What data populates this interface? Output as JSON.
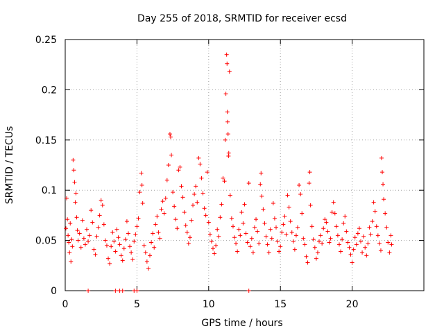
{
  "chart_data": {
    "type": "scatter",
    "title": "Day 255 of 2018, SRMTID for receiver ecsd",
    "xlabel": "GPS time / hours",
    "ylabel": "SRMTID / TECUs",
    "xlim": [
      0,
      25
    ],
    "ylim": [
      0,
      0.25
    ],
    "x_ticks": [
      0,
      5,
      10,
      15,
      20
    ],
    "x_tick_labels": [
      "0",
      "5",
      "10",
      "15",
      "20"
    ],
    "y_ticks": [
      0,
      0.05,
      0.1,
      0.15,
      0.2,
      0.25
    ],
    "y_tick_labels": [
      "0",
      "0.05",
      "0.1",
      "0.15",
      "0.2",
      "0.25"
    ],
    "grid": true,
    "marker": "+",
    "color": "#ff0000",
    "series": [
      {
        "name": "SRMTID",
        "points": [
          [
            0.05,
            0.062
          ],
          [
            0.1,
            0.092
          ],
          [
            0.15,
            0.071
          ],
          [
            0.2,
            0.055
          ],
          [
            0.25,
            0.048
          ],
          [
            0.3,
            0.038
          ],
          [
            0.35,
            0.067
          ],
          [
            0.4,
            0.029
          ],
          [
            0.45,
            0.051
          ],
          [
            0.5,
            0.044
          ],
          [
            0.55,
            0.13
          ],
          [
            0.6,
            0.12
          ],
          [
            0.65,
            0.108
          ],
          [
            0.7,
            0.088
          ],
          [
            0.75,
            0.097
          ],
          [
            0.8,
            0.073
          ],
          [
            0.85,
            0.06
          ],
          [
            0.9,
            0.05
          ],
          [
            1.0,
            0.057
          ],
          [
            1.1,
            0.043
          ],
          [
            1.2,
            0.07
          ],
          [
            1.3,
            0.052
          ],
          [
            1.4,
            0.046
          ],
          [
            1.5,
            0.061
          ],
          [
            1.6,
            0.049
          ],
          [
            1.7,
            0.055
          ],
          [
            1.8,
            0.08
          ],
          [
            1.9,
            0.068
          ],
          [
            2.0,
            0.041
          ],
          [
            2.1,
            0.036
          ],
          [
            2.2,
            0.054
          ],
          [
            2.3,
            0.063
          ],
          [
            2.4,
            0.075
          ],
          [
            2.5,
            0.09
          ],
          [
            2.6,
            0.085
          ],
          [
            2.7,
            0.066
          ],
          [
            2.8,
            0.05
          ],
          [
            2.9,
            0.045
          ],
          [
            3.0,
            0.032
          ],
          [
            3.1,
            0.027
          ],
          [
            3.2,
            0.044
          ],
          [
            3.3,
            0.058
          ],
          [
            3.4,
            0.049
          ],
          [
            3.5,
            0.039
          ],
          [
            3.6,
            0.061
          ],
          [
            3.7,
            0.053
          ],
          [
            3.8,
            0.046
          ],
          [
            3.9,
            0.035
          ],
          [
            4.0,
            0.03
          ],
          [
            4.1,
            0.042
          ],
          [
            4.2,
            0.051
          ],
          [
            4.3,
            0.069
          ],
          [
            4.4,
            0.057
          ],
          [
            4.5,
            0.044
          ],
          [
            4.6,
            0.038
          ],
          [
            4.7,
            0.031
          ],
          [
            4.8,
            0.049
          ],
          [
            4.9,
            0.056
          ],
          [
            5.0,
            0.064
          ],
          [
            5.1,
            0.072
          ],
          [
            5.2,
            0.098
          ],
          [
            5.3,
            0.117
          ],
          [
            5.35,
            0.105
          ],
          [
            5.4,
            0.087
          ],
          [
            5.5,
            0.045
          ],
          [
            5.6,
            0.038
          ],
          [
            5.7,
            0.029
          ],
          [
            5.8,
            0.022
          ],
          [
            5.9,
            0.035
          ],
          [
            6.0,
            0.048
          ],
          [
            6.1,
            0.057
          ],
          [
            6.2,
            0.043
          ],
          [
            6.3,
            0.066
          ],
          [
            6.4,
            0.074
          ],
          [
            6.5,
            0.058
          ],
          [
            6.6,
            0.052
          ],
          [
            6.7,
            0.081
          ],
          [
            6.8,
            0.089
          ],
          [
            6.9,
            0.077
          ],
          [
            7.0,
            0.092
          ],
          [
            7.1,
            0.11
          ],
          [
            7.2,
            0.125
          ],
          [
            7.3,
            0.156
          ],
          [
            7.35,
            0.153
          ],
          [
            7.4,
            0.135
          ],
          [
            7.5,
            0.098
          ],
          [
            7.6,
            0.084
          ],
          [
            7.7,
            0.071
          ],
          [
            7.8,
            0.062
          ],
          [
            7.9,
            0.12
          ],
          [
            8.0,
            0.123
          ],
          [
            8.1,
            0.104
          ],
          [
            8.2,
            0.093
          ],
          [
            8.3,
            0.078
          ],
          [
            8.4,
            0.065
          ],
          [
            8.5,
            0.058
          ],
          [
            8.6,
            0.047
          ],
          [
            8.7,
            0.053
          ],
          [
            8.8,
            0.07
          ],
          [
            8.9,
            0.085
          ],
          [
            9.0,
            0.096
          ],
          [
            9.1,
            0.104
          ],
          [
            9.2,
            0.088
          ],
          [
            9.3,
            0.132
          ],
          [
            9.4,
            0.126
          ],
          [
            9.5,
            0.112
          ],
          [
            9.6,
            0.097
          ],
          [
            9.7,
            0.082
          ],
          [
            9.8,
            0.075
          ],
          [
            9.9,
            0.118
          ],
          [
            10.0,
            0.068
          ],
          [
            10.1,
            0.056
          ],
          [
            10.2,
            0.049
          ],
          [
            10.3,
            0.042
          ],
          [
            10.4,
            0.037
          ],
          [
            10.5,
            0.045
          ],
          [
            10.6,
            0.061
          ],
          [
            10.7,
            0.054
          ],
          [
            10.8,
            0.073
          ],
          [
            10.9,
            0.086
          ],
          [
            11.0,
            0.112
          ],
          [
            11.1,
            0.109
          ],
          [
            11.15,
            0.15
          ],
          [
            11.2,
            0.196
          ],
          [
            11.25,
            0.235
          ],
          [
            11.28,
            0.226
          ],
          [
            11.3,
            0.178
          ],
          [
            11.32,
            0.168
          ],
          [
            11.35,
            0.156
          ],
          [
            11.38,
            0.134
          ],
          [
            11.4,
            0.137
          ],
          [
            11.45,
            0.218
          ],
          [
            11.5,
            0.095
          ],
          [
            11.6,
            0.072
          ],
          [
            11.7,
            0.064
          ],
          [
            11.8,
            0.053
          ],
          [
            11.9,
            0.047
          ],
          [
            12.0,
            0.039
          ],
          [
            12.1,
            0.061
          ],
          [
            12.2,
            0.055
          ],
          [
            12.3,
            0.078
          ],
          [
            12.4,
            0.067
          ],
          [
            12.5,
            0.086
          ],
          [
            12.6,
            0.057
          ],
          [
            12.7,
            0.048
          ],
          [
            12.8,
            0.107
          ],
          [
            12.9,
            0.044
          ],
          [
            13.0,
            0.052
          ],
          [
            13.1,
            0.038
          ],
          [
            13.2,
            0.063
          ],
          [
            13.3,
            0.071
          ],
          [
            13.4,
            0.059
          ],
          [
            13.5,
            0.047
          ],
          [
            13.6,
            0.106
          ],
          [
            13.65,
            0.117
          ],
          [
            13.7,
            0.094
          ],
          [
            13.8,
            0.081
          ],
          [
            13.9,
            0.067
          ],
          [
            14.0,
            0.054
          ],
          [
            14.1,
            0.046
          ],
          [
            14.2,
            0.038
          ],
          [
            14.3,
            0.061
          ],
          [
            14.4,
            0.052
          ],
          [
            14.5,
            0.087
          ],
          [
            14.6,
            0.072
          ],
          [
            14.7,
            0.063
          ],
          [
            14.8,
            0.049
          ],
          [
            14.9,
            0.039
          ],
          [
            15.0,
            0.044
          ],
          [
            15.1,
            0.058
          ],
          [
            15.2,
            0.066
          ],
          [
            15.3,
            0.074
          ],
          [
            15.4,
            0.056
          ],
          [
            15.5,
            0.095
          ],
          [
            15.6,
            0.083
          ],
          [
            15.7,
            0.069
          ],
          [
            15.8,
            0.058
          ],
          [
            15.9,
            0.049
          ],
          [
            16.0,
            0.041
          ],
          [
            16.1,
            0.055
          ],
          [
            16.2,
            0.063
          ],
          [
            16.3,
            0.105
          ],
          [
            16.4,
            0.096
          ],
          [
            16.5,
            0.077
          ],
          [
            16.6,
            0.052
          ],
          [
            16.7,
            0.046
          ],
          [
            16.8,
            0.034
          ],
          [
            16.9,
            0.028
          ],
          [
            17.0,
            0.107
          ],
          [
            17.05,
            0.118
          ],
          [
            17.1,
            0.085
          ],
          [
            17.2,
            0.064
          ],
          [
            17.3,
            0.051
          ],
          [
            17.4,
            0.043
          ],
          [
            17.5,
            0.032
          ],
          [
            17.6,
            0.038
          ],
          [
            17.7,
            0.049
          ],
          [
            17.8,
            0.055
          ],
          [
            17.9,
            0.047
          ],
          [
            18.0,
            0.062
          ],
          [
            18.1,
            0.071
          ],
          [
            18.2,
            0.068
          ],
          [
            18.3,
            0.059
          ],
          [
            18.4,
            0.048
          ],
          [
            18.5,
            0.052
          ],
          [
            18.6,
            0.078
          ],
          [
            18.7,
            0.088
          ],
          [
            18.8,
            0.077
          ],
          [
            18.9,
            0.064
          ],
          [
            19.0,
            0.055
          ],
          [
            19.1,
            0.046
          ],
          [
            19.2,
            0.039
          ],
          [
            19.3,
            0.051
          ],
          [
            19.4,
            0.067
          ],
          [
            19.5,
            0.074
          ],
          [
            19.6,
            0.059
          ],
          [
            19.7,
            0.048
          ],
          [
            19.8,
            0.043
          ],
          [
            19.9,
            0.036
          ],
          [
            20.0,
            0.028
          ],
          [
            20.1,
            0.041
          ],
          [
            20.2,
            0.053
          ],
          [
            20.3,
            0.046
          ],
          [
            20.4,
            0.057
          ],
          [
            20.5,
            0.062
          ],
          [
            20.6,
            0.049
          ],
          [
            20.7,
            0.038
          ],
          [
            20.8,
            0.054
          ],
          [
            20.9,
            0.043
          ],
          [
            21.0,
            0.035
          ],
          [
            21.1,
            0.047
          ],
          [
            21.2,
            0.063
          ],
          [
            21.3,
            0.056
          ],
          [
            21.4,
            0.069
          ],
          [
            21.5,
            0.088
          ],
          [
            21.6,
            0.079
          ],
          [
            21.7,
            0.064
          ],
          [
            21.8,
            0.055
          ],
          [
            21.9,
            0.047
          ],
          [
            22.0,
            0.04
          ],
          [
            22.05,
            0.132
          ],
          [
            22.1,
            0.118
          ],
          [
            22.15,
            0.106
          ],
          [
            22.2,
            0.091
          ],
          [
            22.3,
            0.077
          ],
          [
            22.4,
            0.063
          ],
          [
            22.5,
            0.048
          ],
          [
            22.6,
            0.038
          ],
          [
            22.7,
            0.055
          ],
          [
            22.75,
            0.046
          ],
          [
            1.6,
            0.0
          ],
          [
            3.5,
            0.0
          ],
          [
            3.8,
            0.0
          ],
          [
            4.0,
            0.0
          ],
          [
            4.8,
            0.0
          ],
          [
            5.0,
            0.0
          ],
          [
            12.8,
            0.0
          ]
        ]
      }
    ]
  }
}
